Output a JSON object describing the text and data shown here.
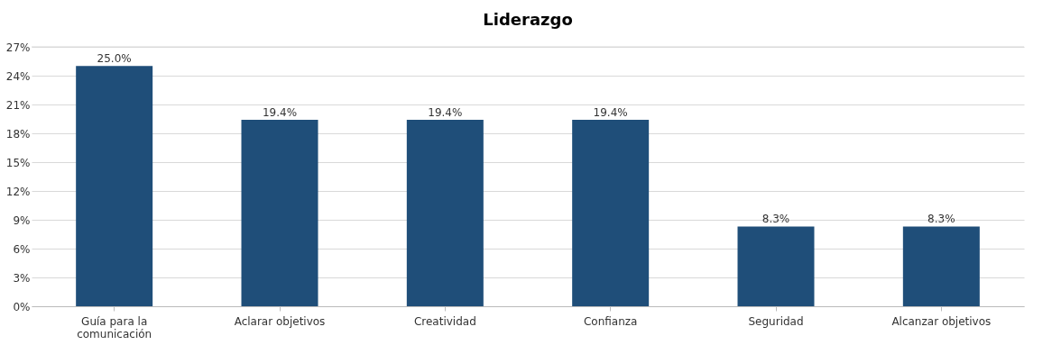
{
  "chart_data": {
    "type": "bar",
    "title": "Liderazgo",
    "categories": [
      "Guía para la\ncomunicación",
      "Aclarar objetivos",
      "Creatividad",
      "Confianza",
      "Seguridad",
      "Alcanzar objetivos"
    ],
    "values": [
      25.0,
      19.4,
      19.4,
      19.4,
      8.3,
      8.3
    ],
    "value_labels": [
      "25.0%",
      "19.4%",
      "19.4%",
      "19.4%",
      "8.3%",
      "8.3%"
    ],
    "color": "#1f4e79",
    "ylim": [
      0,
      27
    ],
    "yticks": [
      {
        "value": 0,
        "label": "0%"
      },
      {
        "value": 3,
        "label": "3%"
      },
      {
        "value": 6,
        "label": "6%"
      },
      {
        "value": 9,
        "label": "9%"
      },
      {
        "value": 12,
        "label": "12%"
      },
      {
        "value": 15,
        "label": "15%"
      },
      {
        "value": 18,
        "label": "18%"
      },
      {
        "value": 21,
        "label": "21%"
      },
      {
        "value": 24,
        "label": "24%"
      },
      {
        "value": 27,
        "label": "27%"
      }
    ],
    "grid": "y"
  }
}
